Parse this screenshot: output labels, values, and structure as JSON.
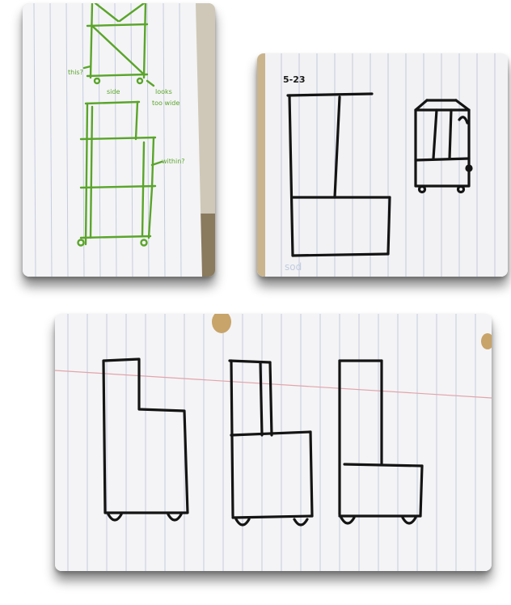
{
  "photos": [
    {
      "id": "green-ink-tower-sketch",
      "notes": [
        "this?",
        "side",
        "looks",
        "too wide",
        "within?"
      ]
    },
    {
      "id": "black-ink-cabinet-sketch",
      "notes": [
        "5-23"
      ]
    },
    {
      "id": "three-cabinet-variants-sketch",
      "notes": []
    }
  ],
  "colors": {
    "paper": "#f4f4f6",
    "rule_line": "#b9c6dc",
    "margin_line": "#e2a4ac",
    "green_ink": "#5aa52a",
    "black_ink": "#141414",
    "shadow": "#9a9a9a"
  }
}
